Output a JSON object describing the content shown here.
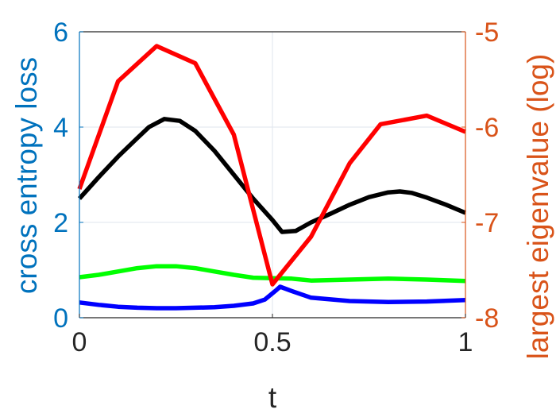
{
  "chart_data": {
    "type": "line",
    "xlabel": "t",
    "ylabel_left": "cross entropy loss",
    "ylabel_right": "largest eigenvalue (log)",
    "xlim": [
      0,
      1
    ],
    "ylim_left": [
      0,
      6
    ],
    "ylim_right": [
      -8,
      -5
    ],
    "x_ticks": [
      "0",
      "0.5",
      "1"
    ],
    "y_ticks_left": [
      "0",
      "2",
      "4",
      "6"
    ],
    "y_ticks_right": [
      "-8",
      "-7",
      "-6",
      "-5"
    ],
    "grid": true,
    "colors": {
      "left_axis": "#0072BD",
      "right_axis": "#D95319"
    },
    "series": [
      {
        "axis": "left",
        "color": "#000000",
        "x": [
          0,
          0.05,
          0.1,
          0.15,
          0.18,
          0.22,
          0.26,
          0.3,
          0.35,
          0.4,
          0.45,
          0.5,
          0.525,
          0.56,
          0.6,
          0.65,
          0.7,
          0.75,
          0.8,
          0.83,
          0.86,
          0.9,
          0.95,
          1
        ],
        "y": [
          2.5,
          2.95,
          3.38,
          3.77,
          4.0,
          4.17,
          4.13,
          3.92,
          3.5,
          3.0,
          2.5,
          2.05,
          1.8,
          1.82,
          2.0,
          2.18,
          2.37,
          2.53,
          2.63,
          2.65,
          2.62,
          2.52,
          2.37,
          2.2
        ]
      },
      {
        "axis": "left",
        "color": "#00FF00",
        "x": [
          0,
          0.05,
          0.1,
          0.15,
          0.2,
          0.25,
          0.3,
          0.35,
          0.4,
          0.45,
          0.5,
          0.55,
          0.6,
          0.7,
          0.8,
          0.9,
          1
        ],
        "y": [
          0.85,
          0.9,
          0.97,
          1.04,
          1.08,
          1.08,
          1.04,
          0.97,
          0.9,
          0.84,
          0.83,
          0.82,
          0.78,
          0.8,
          0.82,
          0.8,
          0.77
        ]
      },
      {
        "axis": "left",
        "color": "#0000FF",
        "x": [
          0,
          0.05,
          0.1,
          0.15,
          0.2,
          0.25,
          0.3,
          0.35,
          0.4,
          0.45,
          0.48,
          0.51,
          0.52,
          0.55,
          0.6,
          0.7,
          0.8,
          0.9,
          1
        ],
        "y": [
          0.32,
          0.27,
          0.23,
          0.21,
          0.2,
          0.2,
          0.21,
          0.22,
          0.25,
          0.3,
          0.38,
          0.58,
          0.65,
          0.56,
          0.42,
          0.35,
          0.33,
          0.34,
          0.37
        ]
      },
      {
        "axis": "right",
        "color": "#FF0000",
        "x": [
          0,
          0.1,
          0.2,
          0.3,
          0.4,
          0.5,
          0.6,
          0.7,
          0.78,
          0.9,
          1
        ],
        "y": [
          -6.65,
          -5.52,
          -5.15,
          -5.33,
          -6.08,
          -7.65,
          -7.15,
          -6.38,
          -5.97,
          -5.88,
          -6.05
        ]
      }
    ]
  }
}
